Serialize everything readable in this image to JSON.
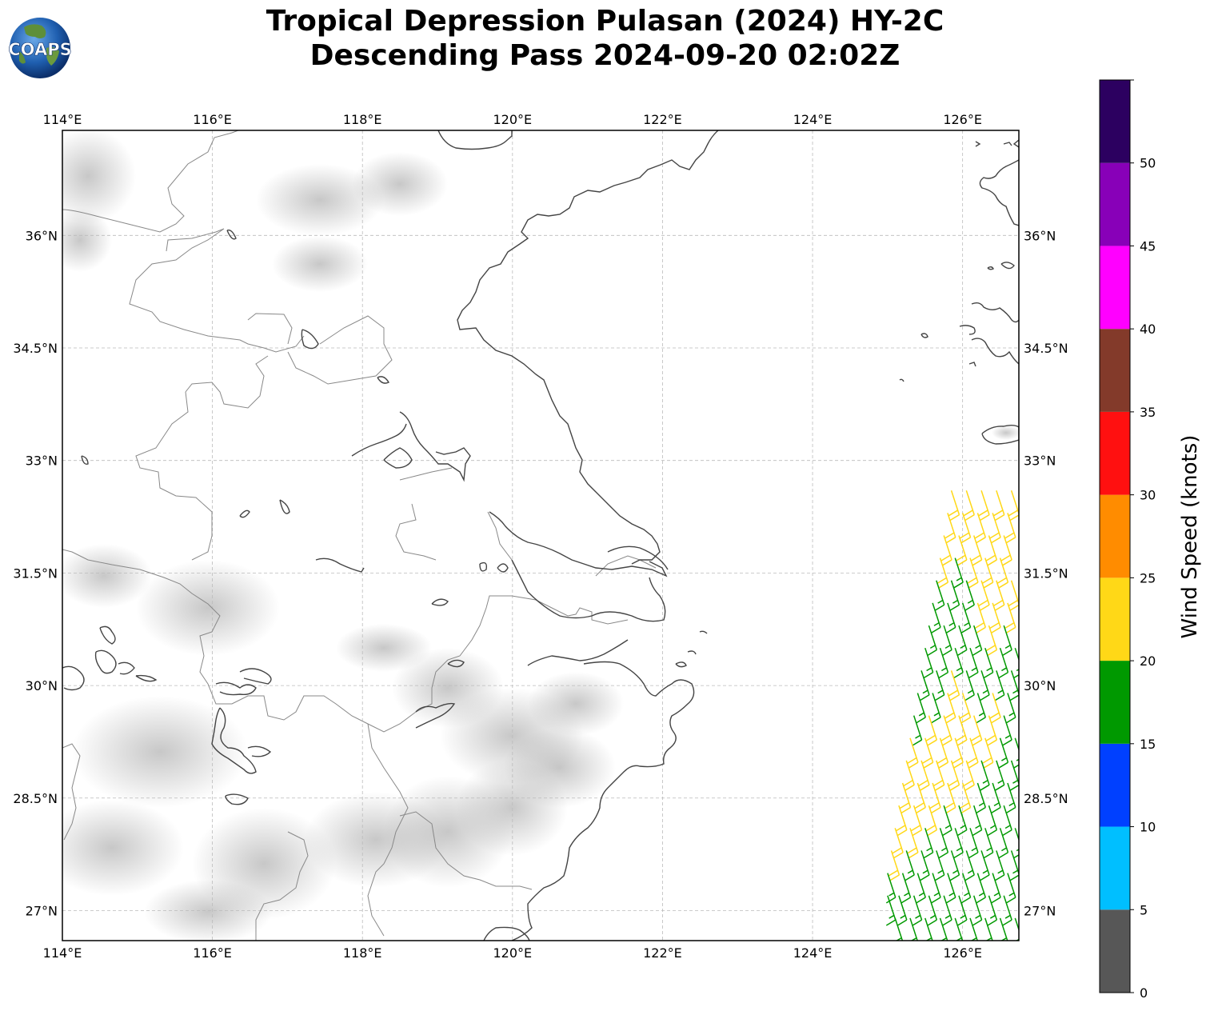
{
  "title": {
    "line1": "Tropical Depression Pulasan (2024) HY-2C",
    "line2": "Descending Pass 2024-09-20 02:02Z"
  },
  "logo_text": "COAPS",
  "map": {
    "lon_ticks": [
      "114°E",
      "116°E",
      "118°E",
      "120°E",
      "122°E",
      "124°E",
      "126°E"
    ],
    "lat_ticks": [
      "36°N",
      "34.5°N",
      "33°N",
      "31.5°N",
      "30°N",
      "28.5°N",
      "27°N"
    ],
    "extent": {
      "lon_min": 114,
      "lon_max": 126.75,
      "lat_min": 26.6,
      "lat_max": 37.4
    },
    "coastline_color": "#333333",
    "border_color": "#888888",
    "grid_style": "dashed"
  },
  "colorbar": {
    "label": "Wind Speed (knots)",
    "ticks": [
      "0",
      "5",
      "10",
      "15",
      "20",
      "25",
      "30",
      "35",
      "40",
      "45",
      "50"
    ],
    "bins": [
      {
        "from": 0,
        "to": 5,
        "color": "#575757"
      },
      {
        "from": 5,
        "to": 10,
        "color": "#00bfff"
      },
      {
        "from": 10,
        "to": 15,
        "color": "#0040ff"
      },
      {
        "from": 15,
        "to": 20,
        "color": "#009900"
      },
      {
        "from": 20,
        "to": 25,
        "color": "#ffd817"
      },
      {
        "from": 25,
        "to": 30,
        "color": "#ff8c00"
      },
      {
        "from": 30,
        "to": 35,
        "color": "#ff1010"
      },
      {
        "from": 35,
        "to": 40,
        "color": "#833a2a"
      },
      {
        "from": 40,
        "to": 45,
        "color": "#ff00ff"
      },
      {
        "from": 45,
        "to": 50,
        "color": "#8800b8"
      },
      {
        "from": 50,
        "to": 55,
        "color": "#2c0060"
      }
    ]
  },
  "wind_barbs": {
    "speed_units": "knots",
    "swath_east_edge_lon": 126.75,
    "rows": [
      {
        "lat": 32.6,
        "lons": [
          125.85,
          126.05,
          126.25,
          126.45,
          126.65
        ],
        "speeds": [
          20,
          20,
          20,
          20,
          20
        ]
      },
      {
        "lat": 32.3,
        "lons": [
          125.8,
          126.0,
          126.2,
          126.4,
          126.6
        ],
        "speeds": [
          20,
          20,
          20,
          20,
          20
        ]
      },
      {
        "lat": 32.0,
        "lons": [
          125.75,
          125.95,
          126.15,
          126.35,
          126.55
        ],
        "speeds": [
          20,
          20,
          20,
          20,
          20
        ]
      },
      {
        "lat": 31.7,
        "lons": [
          125.7,
          125.9,
          126.1,
          126.3,
          126.5
        ],
        "speeds": [
          20,
          15,
          20,
          20,
          20
        ]
      },
      {
        "lat": 31.4,
        "lons": [
          125.65,
          125.85,
          126.05,
          126.25,
          126.45,
          126.65
        ],
        "speeds": [
          15,
          15,
          15,
          20,
          20,
          20
        ]
      },
      {
        "lat": 31.1,
        "lons": [
          125.6,
          125.8,
          126.0,
          126.2,
          126.4,
          126.6
        ],
        "speeds": [
          15,
          15,
          15,
          20,
          20,
          20
        ]
      },
      {
        "lat": 30.8,
        "lons": [
          125.55,
          125.75,
          125.95,
          126.15,
          126.35,
          126.55
        ],
        "speeds": [
          15,
          15,
          15,
          15,
          20,
          15
        ]
      },
      {
        "lat": 30.5,
        "lons": [
          125.5,
          125.7,
          125.9,
          126.1,
          126.3,
          126.5,
          126.7
        ],
        "speeds": [
          15,
          15,
          15,
          15,
          15,
          15,
          15
        ]
      },
      {
        "lat": 30.2,
        "lons": [
          125.45,
          125.65,
          125.85,
          126.05,
          126.25,
          126.45,
          126.65
        ],
        "speeds": [
          15,
          15,
          20,
          15,
          15,
          15,
          15
        ]
      },
      {
        "lat": 29.9,
        "lons": [
          125.4,
          125.6,
          125.8,
          126.0,
          126.2,
          126.4,
          126.6
        ],
        "speeds": [
          15,
          15,
          20,
          20,
          15,
          20,
          15
        ]
      },
      {
        "lat": 29.6,
        "lons": [
          125.35,
          125.55,
          125.75,
          125.95,
          126.15,
          126.35,
          126.55
        ],
        "speeds": [
          15,
          20,
          20,
          20,
          20,
          20,
          15
        ]
      },
      {
        "lat": 29.3,
        "lons": [
          125.3,
          125.5,
          125.7,
          125.9,
          126.1,
          126.3,
          126.5,
          126.7
        ],
        "speeds": [
          20,
          20,
          20,
          20,
          20,
          20,
          15,
          15
        ]
      },
      {
        "lat": 29.0,
        "lons": [
          125.25,
          125.45,
          125.65,
          125.85,
          126.05,
          126.25,
          126.45,
          126.65
        ],
        "speeds": [
          20,
          20,
          20,
          20,
          20,
          15,
          15,
          15
        ]
      },
      {
        "lat": 28.7,
        "lons": [
          125.2,
          125.4,
          125.6,
          125.8,
          126.0,
          126.2,
          126.4,
          126.6
        ],
        "speeds": [
          20,
          20,
          20,
          20,
          20,
          15,
          15,
          15
        ]
      },
      {
        "lat": 28.4,
        "lons": [
          125.15,
          125.35,
          125.55,
          125.75,
          125.95,
          126.15,
          126.35,
          126.55
        ],
        "speeds": [
          20,
          20,
          20,
          15,
          15,
          15,
          15,
          15
        ]
      },
      {
        "lat": 28.1,
        "lons": [
          125.1,
          125.3,
          125.5,
          125.7,
          125.9,
          126.1,
          126.3,
          126.5,
          126.7
        ],
        "speeds": [
          20,
          20,
          15,
          15,
          15,
          15,
          15,
          15,
          15
        ]
      },
      {
        "lat": 27.8,
        "lons": [
          125.05,
          125.25,
          125.45,
          125.65,
          125.85,
          126.05,
          126.25,
          126.45,
          126.65
        ],
        "speeds": [
          20,
          15,
          15,
          15,
          15,
          15,
          15,
          15,
          15
        ]
      },
      {
        "lat": 27.5,
        "lons": [
          125.0,
          125.2,
          125.4,
          125.6,
          125.8,
          126.0,
          126.2,
          126.4,
          126.6
        ],
        "speeds": [
          15,
          15,
          15,
          15,
          15,
          15,
          15,
          15,
          15
        ]
      },
      {
        "lat": 27.2,
        "lons": [
          125.0,
          125.15,
          125.35,
          125.55,
          125.75,
          125.95,
          126.15,
          126.35,
          126.55
        ],
        "speeds": [
          15,
          15,
          15,
          15,
          15,
          15,
          15,
          15,
          15
        ]
      },
      {
        "lat": 26.9,
        "lons": [
          125.1,
          125.3,
          125.5,
          125.7,
          125.9,
          126.1,
          126.3,
          126.5,
          126.7
        ],
        "speeds": [
          15,
          15,
          15,
          15,
          15,
          15,
          15,
          15,
          15
        ]
      }
    ]
  }
}
